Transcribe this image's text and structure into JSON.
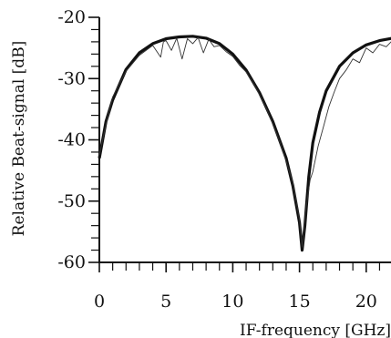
{
  "chart_data": {
    "type": "line",
    "title": "",
    "xlabel": "IF-frequency [GHz]",
    "ylabel": "Relative Beat-signal [dB]",
    "xlim": [
      0,
      22
    ],
    "ylim": [
      -60,
      -20
    ],
    "x_ticks": [
      0,
      5,
      10,
      15,
      20
    ],
    "x_tick_labels": [
      "0",
      "5",
      "10",
      "15",
      "20"
    ],
    "y_ticks": [
      -60,
      -50,
      -40,
      -30,
      -20
    ],
    "y_tick_labels": [
      "-60",
      "-50",
      "-40",
      "-30",
      "-20"
    ],
    "minor_ticks": true,
    "grid": false,
    "legend": "none",
    "series": [
      {
        "style": "thick-smooth",
        "x": [
          0,
          0.5,
          1,
          2,
          3,
          4,
          5,
          6,
          7,
          8,
          9,
          10,
          11,
          12,
          13,
          14,
          14.5,
          15,
          15.2,
          15.4,
          15.7,
          16,
          16.5,
          17,
          18,
          19,
          20,
          21,
          22
        ],
        "y": [
          -43,
          -37,
          -33.5,
          -28.5,
          -25.8,
          -24.3,
          -23.5,
          -23.2,
          -23.1,
          -23.4,
          -24.3,
          -26,
          -28.6,
          -32.3,
          -37,
          -43,
          -47.5,
          -53.5,
          -58,
          -54,
          -46,
          -40.5,
          -35.5,
          -32,
          -28,
          -25.8,
          -24.5,
          -23.8,
          -23.4
        ]
      },
      {
        "style": "thin-noisy",
        "x": [
          0,
          0.5,
          1,
          2,
          3,
          4,
          4.6,
          4.8,
          5,
          5.4,
          5.8,
          6.2,
          6.6,
          7,
          7.4,
          7.8,
          8.2,
          8.6,
          9,
          9.5,
          10,
          10.5,
          11,
          11.5,
          12,
          12.5,
          13,
          13.5,
          14,
          14.5,
          15,
          15.2,
          15.5,
          15.8,
          16,
          16.4,
          16.8,
          17.2,
          17.6,
          18,
          18.5,
          19,
          19.5,
          20,
          20.5,
          21,
          21.5,
          22
        ],
        "y": [
          -42.5,
          -37.5,
          -33,
          -28.8,
          -26.2,
          -24.6,
          -26.5,
          -24,
          -23.8,
          -25.4,
          -23.4,
          -26.8,
          -23.5,
          -24.3,
          -23.3,
          -25.8,
          -23.6,
          -24.8,
          -24.6,
          -25.6,
          -26.4,
          -27.8,
          -28.9,
          -30.6,
          -32.6,
          -34.8,
          -37.4,
          -40.2,
          -43.5,
          -47,
          -53,
          -57.5,
          -51,
          -46.5,
          -45.2,
          -41,
          -37.8,
          -34.6,
          -32.2,
          -30,
          -28.6,
          -26.8,
          -27.4,
          -25,
          -25.8,
          -24.4,
          -24.8,
          -23.7
        ]
      }
    ]
  }
}
